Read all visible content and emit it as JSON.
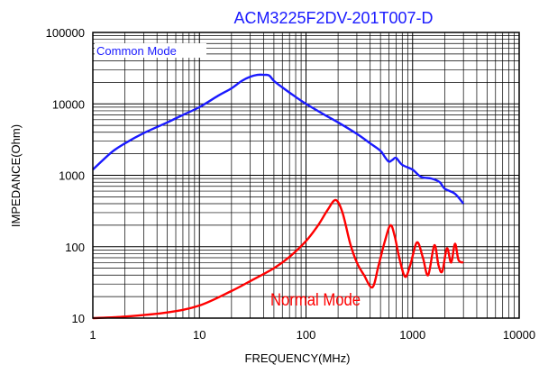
{
  "chart_data": {
    "type": "line",
    "title": "ACM3225F2DV-201T007-D",
    "xlabel": "FREQUENCY(MHz)",
    "ylabel": "IMPEDANCE(Ohm)",
    "x_scale": "log",
    "y_scale": "log",
    "xlim": [
      1,
      10000
    ],
    "ylim": [
      10,
      100000
    ],
    "x_ticks": [
      "1",
      "10",
      "100",
      "1000",
      "10000"
    ],
    "y_ticks": [
      "100000",
      "10000",
      "1000",
      "100",
      "10"
    ],
    "grid": true,
    "series": [
      {
        "name": "Common Mode",
        "color": "#1a1aff",
        "x": [
          1,
          1.5,
          2,
          3,
          5,
          7,
          10,
          15,
          20,
          25,
          30,
          35,
          40,
          45,
          50,
          60,
          80,
          100,
          150,
          200,
          300,
          400,
          500,
          550,
          600,
          650,
          700,
          800,
          1000,
          1200,
          1500,
          1800,
          2000,
          2500,
          3000
        ],
        "y": [
          1200,
          2100,
          2800,
          3900,
          5500,
          7000,
          9000,
          13000,
          16500,
          21000,
          24000,
          25500,
          25500,
          25000,
          21000,
          17000,
          12500,
          10000,
          7000,
          5500,
          3800,
          2800,
          2200,
          1800,
          1550,
          1650,
          1750,
          1400,
          1200,
          950,
          900,
          800,
          650,
          550,
          400
        ]
      },
      {
        "name": "Normal Mode",
        "color": "#ff0000",
        "x": [
          1,
          2,
          5,
          10,
          20,
          30,
          50,
          70,
          100,
          130,
          160,
          190,
          220,
          260,
          300,
          350,
          420,
          480,
          550,
          620,
          680,
          750,
          850,
          950,
          1100,
          1250,
          1400,
          1600,
          1750,
          1900,
          2100,
          2300,
          2500,
          2700,
          3000
        ],
        "y": [
          10,
          10.5,
          12,
          15,
          24,
          33,
          50,
          72,
          120,
          200,
          330,
          450,
          300,
          110,
          60,
          40,
          27,
          55,
          120,
          200,
          140,
          70,
          38,
          55,
          115,
          70,
          40,
          105,
          55,
          45,
          95,
          60,
          110,
          65,
          60
        ]
      }
    ],
    "annotations": [
      "Common Mode",
      "Normal Mode"
    ]
  }
}
